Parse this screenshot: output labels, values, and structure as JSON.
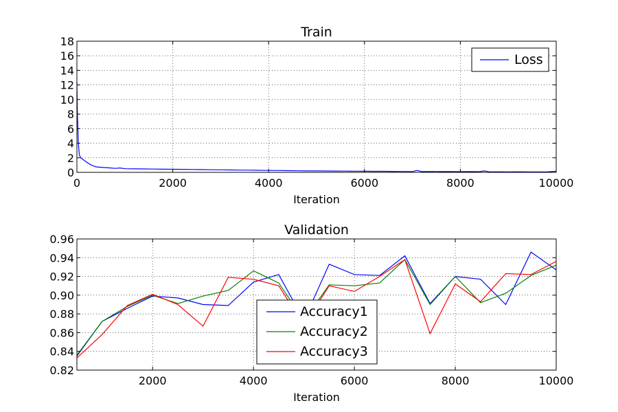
{
  "chart_data": [
    {
      "type": "line",
      "title": "Train",
      "xlabel": "Iteration",
      "ylabel": "",
      "xlim": [
        0,
        10000
      ],
      "ylim": [
        0,
        18
      ],
      "xticks": [
        0,
        2000,
        4000,
        6000,
        8000,
        10000
      ],
      "yticks": [
        0,
        2,
        4,
        6,
        8,
        10,
        12,
        14,
        16,
        18
      ],
      "grid": true,
      "legend": "top-right",
      "series": [
        {
          "name": "Loss",
          "color": "#0000ff",
          "x": [
            0,
            10,
            30,
            50,
            80,
            120,
            160,
            200,
            250,
            300,
            400,
            500,
            600,
            700,
            800,
            900,
            1000,
            1200,
            1400,
            1600,
            1800,
            2000,
            2200,
            2400,
            2600,
            2800,
            3000,
            3200,
            3400,
            3600,
            3800,
            4000,
            4200,
            4400,
            4600,
            4800,
            5000,
            5200,
            5400,
            5600,
            5800,
            6000,
            6200,
            6400,
            6600,
            6800,
            7000,
            7100,
            7200,
            7400,
            7600,
            7800,
            8000,
            8200,
            8400,
            8500,
            8600,
            8800,
            9000,
            9200,
            9400,
            9600,
            9800,
            10000
          ],
          "y": [
            12.4,
            8.0,
            4.0,
            2.4,
            2.0,
            1.8,
            1.6,
            1.4,
            1.2,
            1.0,
            0.75,
            0.7,
            0.65,
            0.6,
            0.55,
            0.6,
            0.5,
            0.48,
            0.47,
            0.45,
            0.43,
            0.42,
            0.41,
            0.4,
            0.38,
            0.36,
            0.35,
            0.33,
            0.31,
            0.3,
            0.28,
            0.26,
            0.25,
            0.24,
            0.22,
            0.2,
            0.2,
            0.19,
            0.18,
            0.17,
            0.16,
            0.15,
            0.14,
            0.14,
            0.13,
            0.12,
            0.11,
            0.25,
            0.1,
            0.12,
            0.1,
            0.1,
            0.09,
            0.1,
            0.09,
            0.2,
            0.08,
            0.08,
            0.07,
            0.08,
            0.07,
            0.07,
            0.07,
            0.15
          ]
        }
      ]
    },
    {
      "type": "line",
      "title": "Validation",
      "xlabel": "Iteration",
      "ylabel": "",
      "xlim": [
        500,
        10000
      ],
      "ylim": [
        0.82,
        0.96
      ],
      "xticks": [
        2000,
        4000,
        6000,
        8000,
        10000
      ],
      "yticks": [
        0.82,
        0.84,
        0.86,
        0.88,
        0.9,
        0.92,
        0.94,
        0.96
      ],
      "ytick_labels": [
        "0.82",
        "0.84",
        "0.86",
        "0.88",
        "0.90",
        "0.92",
        "0.94",
        "0.96"
      ],
      "grid": true,
      "legend": "lower-center",
      "x": [
        500,
        1000,
        1500,
        2000,
        2500,
        3000,
        3500,
        4000,
        4500,
        5000,
        5500,
        6000,
        6500,
        7000,
        7500,
        8000,
        8500,
        9000,
        9500,
        10000
      ],
      "series": [
        {
          "name": "Accuracy1",
          "color": "#0000ff",
          "values": [
            0.835,
            0.872,
            0.886,
            0.899,
            0.897,
            0.89,
            0.889,
            0.914,
            0.922,
            0.873,
            0.933,
            0.922,
            0.921,
            0.942,
            0.891,
            0.92,
            0.917,
            0.89,
            0.946,
            0.927
          ]
        },
        {
          "name": "Accuracy2",
          "color": "#008000",
          "values": [
            0.836,
            0.872,
            0.888,
            0.9,
            0.891,
            0.899,
            0.905,
            0.926,
            0.913,
            0.873,
            0.911,
            0.91,
            0.913,
            0.938,
            0.89,
            0.92,
            0.892,
            0.902,
            0.921,
            0.932
          ]
        },
        {
          "name": "Accuracy3",
          "color": "#ff0000",
          "values": [
            0.833,
            0.858,
            0.889,
            0.901,
            0.89,
            0.867,
            0.919,
            0.917,
            0.91,
            0.868,
            0.91,
            0.904,
            0.92,
            0.938,
            0.859,
            0.912,
            0.893,
            0.923,
            0.922,
            0.936
          ]
        }
      ]
    }
  ]
}
